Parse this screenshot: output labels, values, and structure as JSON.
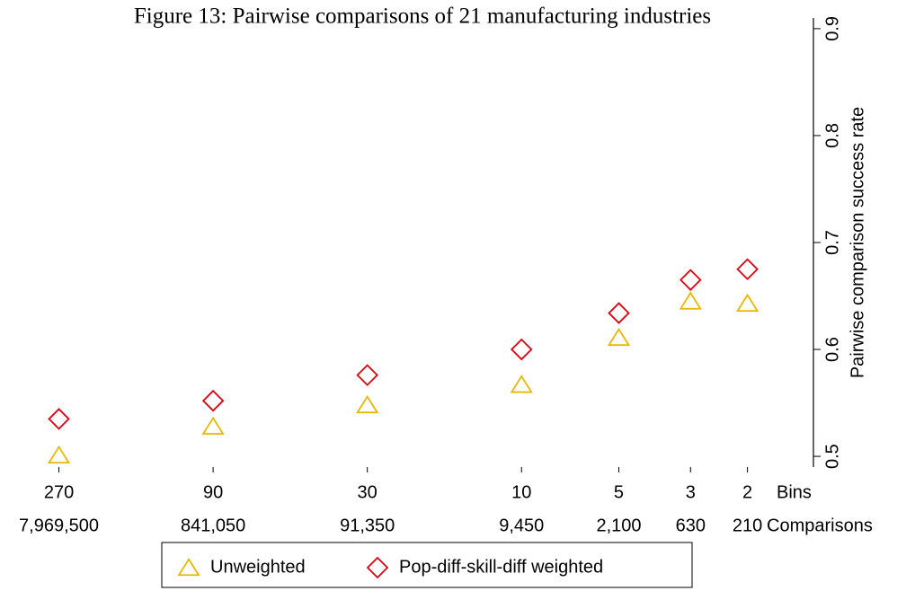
{
  "chart_data": {
    "type": "scatter",
    "title": "Figure 13: Pairwise comparisons of 21 manufacturing industries",
    "ylabel": "Pairwise comparison success rate",
    "xlabel": "Bins",
    "x2label": "Comparisons",
    "xscale": "log",
    "x": [
      270,
      90,
      30,
      10,
      5,
      3,
      2
    ],
    "xlim": [
      350,
      1.25
    ],
    "xticks": [
      270,
      90,
      30,
      10,
      5,
      3,
      2
    ],
    "x2ticks": [
      {
        "value": 7969500,
        "label": "7,969,500"
      },
      {
        "value": 841050,
        "label": "841,050"
      },
      {
        "value": 91350,
        "label": "91,350"
      },
      {
        "value": 9450,
        "label": "9,450"
      },
      {
        "value": 2100,
        "label": "2,100"
      },
      {
        "value": 630,
        "label": "630"
      },
      {
        "value": 210,
        "label": "210"
      }
    ],
    "ylim": [
      0.49,
      0.91
    ],
    "yticks": [
      0.5,
      0.6,
      0.7,
      0.8,
      0.9
    ],
    "series": [
      {
        "name": "Unweighted",
        "marker": "triangle",
        "color": "#e8b800",
        "values": [
          0.501,
          0.528,
          0.548,
          0.567,
          0.611,
          0.645,
          0.643
        ]
      },
      {
        "name": "Pop-diff-skill-diff weighted",
        "marker": "diamond",
        "color": "#e0000f",
        "values": [
          0.535,
          0.552,
          0.576,
          0.6,
          0.634,
          0.665,
          0.675
        ]
      }
    ]
  }
}
